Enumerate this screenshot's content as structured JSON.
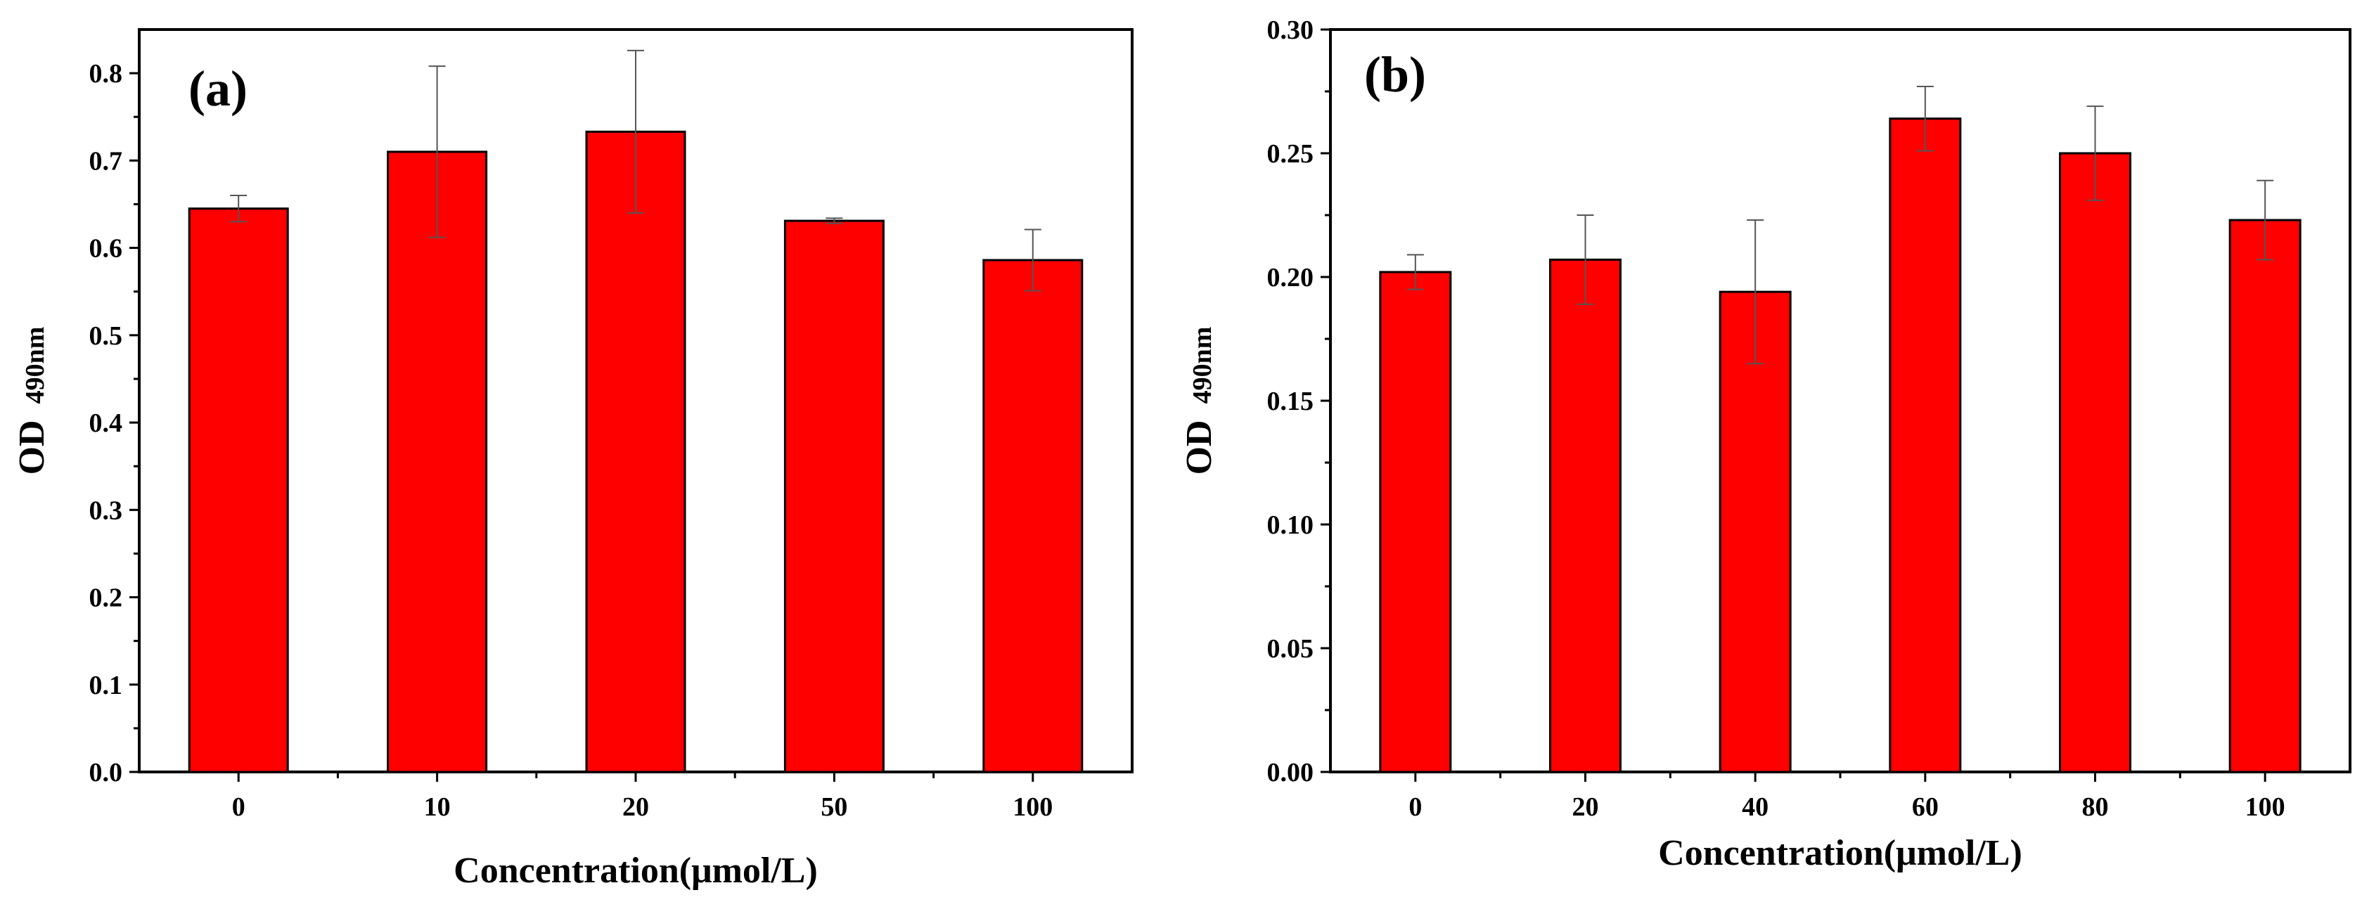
{
  "chart_data": [
    {
      "type": "bar",
      "panel_label": "(a)",
      "categories": [
        "0",
        "10",
        "20",
        "50",
        "100"
      ],
      "values": [
        0.645,
        0.71,
        0.733,
        0.631,
        0.586
      ],
      "errors": [
        0.015,
        0.098,
        0.093,
        0.003,
        0.035
      ],
      "xlabel": "Concentration(μmol/L)",
      "ylabel_main": "OD",
      "ylabel_sub": "490nm",
      "ylim": [
        0,
        0.85
      ],
      "yticks": [
        "0.0",
        "0.1",
        "0.2",
        "0.3",
        "0.4",
        "0.5",
        "0.6",
        "0.7",
        "0.8"
      ],
      "ytick_values": [
        0,
        0.1,
        0.2,
        0.3,
        0.4,
        0.5,
        0.6,
        0.7,
        0.8
      ],
      "bar_color": "#ff0000"
    },
    {
      "type": "bar",
      "panel_label": "(b)",
      "categories": [
        "0",
        "20",
        "40",
        "60",
        "80",
        "100"
      ],
      "values": [
        0.202,
        0.207,
        0.194,
        0.264,
        0.25,
        0.223
      ],
      "errors": [
        0.007,
        0.018,
        0.029,
        0.013,
        0.019,
        0.016
      ],
      "xlabel": "Concentration(μmol/L)",
      "ylabel_main": "OD",
      "ylabel_sub": "490nm",
      "ylim": [
        0,
        0.3
      ],
      "yticks": [
        "0.00",
        "0.05",
        "0.10",
        "0.15",
        "0.20",
        "0.25",
        "0.30"
      ],
      "ytick_values": [
        0,
        0.05,
        0.1,
        0.15,
        0.2,
        0.25,
        0.3
      ],
      "bar_color": "#ff0000"
    }
  ]
}
